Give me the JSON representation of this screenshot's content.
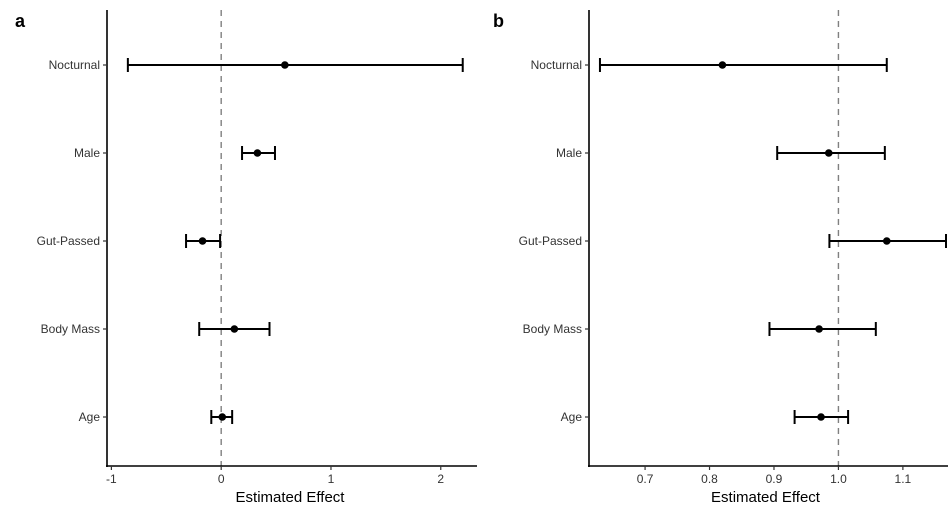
{
  "chart_data": [
    {
      "type": "forest",
      "panel_label": "a",
      "xlabel": "Estimated Effect",
      "xticks": [
        "-1",
        "0",
        "1",
        "2"
      ],
      "xtick_values": [
        -1,
        0,
        1,
        2
      ],
      "xlim": [
        -1.04,
        2.33
      ],
      "reference_line": 0,
      "categories": [
        "Nocturnal",
        "Male",
        "Gut-Passed",
        "Body Mass",
        "Age"
      ],
      "estimates": [
        0.58,
        0.33,
        -0.17,
        0.12,
        0.01
      ],
      "lower": [
        -0.85,
        0.19,
        -0.32,
        -0.2,
        -0.09
      ],
      "upper": [
        2.2,
        0.49,
        -0.01,
        0.44,
        0.1
      ]
    },
    {
      "type": "forest",
      "panel_label": "b",
      "xlabel": "Estimated Effect",
      "xticks": [
        "0.7",
        "0.8",
        "0.9",
        "1.0",
        "1.1"
      ],
      "xtick_values": [
        0.7,
        0.8,
        0.9,
        1.0,
        1.1
      ],
      "xlim": [
        0.613,
        1.17
      ],
      "reference_line": 1.0,
      "categories": [
        "Nocturnal",
        "Male",
        "Gut-Passed",
        "Body Mass",
        "Age"
      ],
      "estimates": [
        0.82,
        0.985,
        1.075,
        0.97,
        0.973
      ],
      "lower": [
        0.63,
        0.905,
        0.986,
        0.893,
        0.932
      ],
      "upper": [
        1.075,
        1.072,
        1.168,
        1.058,
        1.015
      ]
    }
  ]
}
